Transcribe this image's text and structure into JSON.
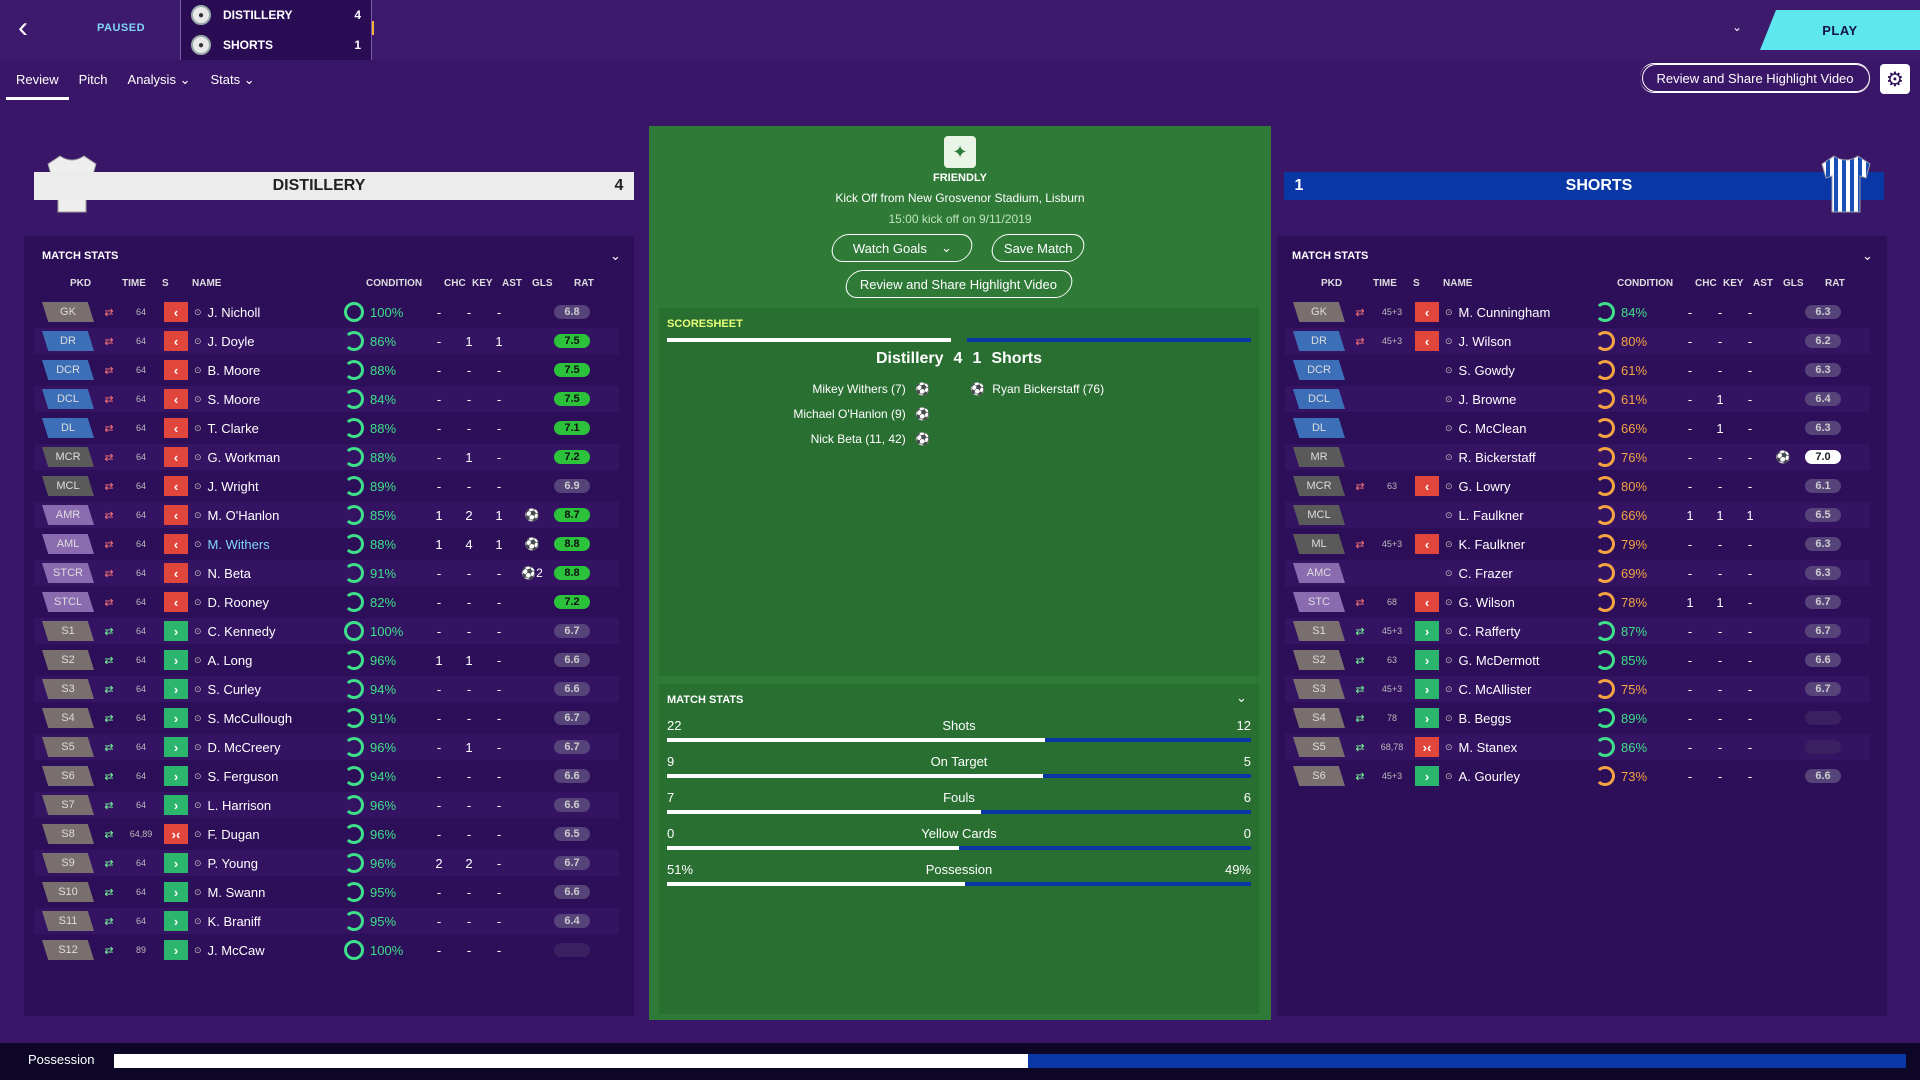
{
  "header": {
    "status": "PAUSED",
    "home": {
      "name": "DISTILLERY",
      "score": "4"
    },
    "away": {
      "name": "SHORTS",
      "score": "1"
    },
    "play_label": "PLAY",
    "highlight_label": "Review and Share Highlight Video"
  },
  "tabs": [
    {
      "label": "Review"
    },
    {
      "label": "Pitch"
    },
    {
      "label": "Analysis"
    },
    {
      "label": "Stats"
    }
  ],
  "home_team": {
    "name": "DISTILLERY",
    "score": "4"
  },
  "away_team": {
    "score": "1",
    "name": "SHORTS"
  },
  "columns": {
    "pkd": "PKD",
    "time": "TIME",
    "s": "S",
    "name": "NAME",
    "condition": "CONDITION",
    "chc": "CHC",
    "key": "KEY",
    "ast": "AST",
    "gls": "GLS",
    "rat": "RAT"
  },
  "match_stats_label": "MATCH STATS",
  "home_players": [
    {
      "pos": "GK",
      "time": "64",
      "name": "J. Nicholl",
      "cond": "100%",
      "chc": "-",
      "key": "-",
      "ast": "-",
      "gls": "",
      "rat": "6.8"
    },
    {
      "pos": "DR",
      "time": "64",
      "name": "J. Doyle",
      "cond": "86%",
      "chc": "-",
      "key": "1",
      "ast": "1",
      "gls": "",
      "rat": "7.5"
    },
    {
      "pos": "DCR",
      "time": "64",
      "name": "B. Moore",
      "cond": "88%",
      "chc": "-",
      "key": "-",
      "ast": "-",
      "gls": "",
      "rat": "7.5"
    },
    {
      "pos": "DCL",
      "time": "64",
      "name": "S. Moore",
      "cond": "84%",
      "chc": "-",
      "key": "-",
      "ast": "-",
      "gls": "",
      "rat": "7.5"
    },
    {
      "pos": "DL",
      "time": "64",
      "name": "T. Clarke",
      "cond": "88%",
      "chc": "-",
      "key": "-",
      "ast": "-",
      "gls": "",
      "rat": "7.1"
    },
    {
      "pos": "MCR",
      "time": "64",
      "name": "G. Workman",
      "cond": "88%",
      "chc": "-",
      "key": "1",
      "ast": "-",
      "gls": "",
      "rat": "7.2"
    },
    {
      "pos": "MCL",
      "time": "64",
      "name": "J. Wright",
      "cond": "89%",
      "chc": "-",
      "key": "-",
      "ast": "-",
      "gls": "",
      "rat": "6.9"
    },
    {
      "pos": "AMR",
      "time": "64",
      "name": "M. O'Hanlon",
      "cond": "85%",
      "chc": "1",
      "key": "2",
      "ast": "1",
      "gls": "⚽",
      "rat": "8.7"
    },
    {
      "pos": "AML",
      "time": "64",
      "name": "M. Withers",
      "cond": "88%",
      "chc": "1",
      "key": "4",
      "ast": "1",
      "gls": "⚽",
      "rat": "8.8"
    },
    {
      "pos": "STCR",
      "time": "64",
      "name": "N. Beta",
      "cond": "91%",
      "chc": "-",
      "key": "-",
      "ast": "-",
      "gls": "⚽2",
      "rat": "8.8"
    },
    {
      "pos": "STCL",
      "time": "64",
      "name": "D. Rooney",
      "cond": "82%",
      "chc": "-",
      "key": "-",
      "ast": "-",
      "gls": "",
      "rat": "7.2"
    },
    {
      "pos": "S1",
      "time": "64",
      "name": "C. Kennedy",
      "cond": "100%",
      "chc": "-",
      "key": "-",
      "ast": "-",
      "gls": "",
      "rat": "6.7"
    },
    {
      "pos": "S2",
      "time": "64",
      "name": "A. Long",
      "cond": "96%",
      "chc": "1",
      "key": "1",
      "ast": "-",
      "gls": "",
      "rat": "6.6"
    },
    {
      "pos": "S3",
      "time": "64",
      "name": "S. Curley",
      "cond": "94%",
      "chc": "-",
      "key": "-",
      "ast": "-",
      "gls": "",
      "rat": "6.6"
    },
    {
      "pos": "S4",
      "time": "64",
      "name": "S. McCullough",
      "cond": "91%",
      "chc": "-",
      "key": "-",
      "ast": "-",
      "gls": "",
      "rat": "6.7"
    },
    {
      "pos": "S5",
      "time": "64",
      "name": "D. McCreery",
      "cond": "96%",
      "chc": "-",
      "key": "1",
      "ast": "-",
      "gls": "",
      "rat": "6.7"
    },
    {
      "pos": "S6",
      "time": "64",
      "name": "S. Ferguson",
      "cond": "94%",
      "chc": "-",
      "key": "-",
      "ast": "-",
      "gls": "",
      "rat": "6.6"
    },
    {
      "pos": "S7",
      "time": "64",
      "name": "L. Harrison",
      "cond": "96%",
      "chc": "-",
      "key": "-",
      "ast": "-",
      "gls": "",
      "rat": "6.6"
    },
    {
      "pos": "S8",
      "time": "64,89",
      "name": "F. Dugan",
      "cond": "96%",
      "chc": "-",
      "key": "-",
      "ast": "-",
      "gls": "",
      "rat": "6.5"
    },
    {
      "pos": "S9",
      "time": "64",
      "name": "P. Young",
      "cond": "96%",
      "chc": "2",
      "key": "2",
      "ast": "-",
      "gls": "",
      "rat": "6.7"
    },
    {
      "pos": "S10",
      "time": "64",
      "name": "M. Swann",
      "cond": "95%",
      "chc": "-",
      "key": "-",
      "ast": "-",
      "gls": "",
      "rat": "6.6"
    },
    {
      "pos": "S11",
      "time": "64",
      "name": "K. Braniff",
      "cond": "95%",
      "chc": "-",
      "key": "-",
      "ast": "-",
      "gls": "",
      "rat": "6.4"
    },
    {
      "pos": "S12",
      "time": "89",
      "name": "J. McCaw",
      "cond": "100%",
      "chc": "-",
      "key": "-",
      "ast": "-",
      "gls": "",
      "rat": ""
    }
  ],
  "away_players": [
    {
      "pos": "GK",
      "time": "45+3",
      "name": "M. Cunningham",
      "cond": "84%",
      "chc": "-",
      "key": "-",
      "ast": "-",
      "gls": "",
      "rat": "6.3"
    },
    {
      "pos": "DR",
      "time": "45+3",
      "name": "J. Wilson",
      "cond": "80%",
      "chc": "-",
      "key": "-",
      "ast": "-",
      "gls": "",
      "rat": "6.2"
    },
    {
      "pos": "DCR",
      "time": "",
      "name": "S. Gowdy",
      "cond": "61%",
      "chc": "-",
      "key": "-",
      "ast": "-",
      "gls": "",
      "rat": "6.3"
    },
    {
      "pos": "DCL",
      "time": "",
      "name": "J. Browne",
      "cond": "61%",
      "chc": "-",
      "key": "1",
      "ast": "-",
      "gls": "",
      "rat": "6.4"
    },
    {
      "pos": "DL",
      "time": "",
      "name": "C. McClean",
      "cond": "66%",
      "chc": "-",
      "key": "1",
      "ast": "-",
      "gls": "",
      "rat": "6.3"
    },
    {
      "pos": "MR",
      "time": "",
      "name": "R. Bickerstaff",
      "cond": "76%",
      "chc": "-",
      "key": "-",
      "ast": "-",
      "gls": "⚽",
      "rat": "7.0"
    },
    {
      "pos": "MCR",
      "time": "63",
      "name": "G. Lowry",
      "cond": "80%",
      "chc": "-",
      "key": "-",
      "ast": "-",
      "gls": "",
      "rat": "6.1"
    },
    {
      "pos": "MCL",
      "time": "",
      "name": "L. Faulkner",
      "cond": "66%",
      "chc": "1",
      "key": "1",
      "ast": "1",
      "gls": "",
      "rat": "6.5"
    },
    {
      "pos": "ML",
      "time": "45+3",
      "name": "K. Faulkner",
      "cond": "79%",
      "chc": "-",
      "key": "-",
      "ast": "-",
      "gls": "",
      "rat": "6.3"
    },
    {
      "pos": "AMC",
      "time": "",
      "name": "C. Frazer",
      "cond": "69%",
      "chc": "-",
      "key": "-",
      "ast": "-",
      "gls": "",
      "rat": "6.3"
    },
    {
      "pos": "STC",
      "time": "68",
      "name": "G. Wilson",
      "cond": "78%",
      "chc": "1",
      "key": "1",
      "ast": "-",
      "gls": "",
      "rat": "6.7"
    },
    {
      "pos": "S1",
      "time": "45+3",
      "name": "C. Rafferty",
      "cond": "87%",
      "chc": "-",
      "key": "-",
      "ast": "-",
      "gls": "",
      "rat": "6.7"
    },
    {
      "pos": "S2",
      "time": "63",
      "name": "G. McDermott",
      "cond": "85%",
      "chc": "-",
      "key": "-",
      "ast": "-",
      "gls": "",
      "rat": "6.6"
    },
    {
      "pos": "S3",
      "time": "45+3",
      "name": "C. McAllister",
      "cond": "75%",
      "chc": "-",
      "key": "-",
      "ast": "-",
      "gls": "",
      "rat": "6.7"
    },
    {
      "pos": "S4",
      "time": "78",
      "name": "B. Beggs",
      "cond": "89%",
      "chc": "-",
      "key": "-",
      "ast": "-",
      "gls": "",
      "rat": ""
    },
    {
      "pos": "S5",
      "time": "68,78",
      "name": "M. Stanex",
      "cond": "86%",
      "chc": "-",
      "key": "-",
      "ast": "-",
      "gls": "",
      "rat": ""
    },
    {
      "pos": "S6",
      "time": "45+3",
      "name": "A. Gourley",
      "cond": "73%",
      "chc": "-",
      "key": "-",
      "ast": "-",
      "gls": "",
      "rat": "6.6"
    }
  ],
  "match_info": {
    "competition": "FRIENDLY",
    "venue": "Kick Off from New Grosvenor Stadium, Lisburn",
    "kickoff": "15:00 kick off on 9/11/2019",
    "watch_goals": "Watch Goals",
    "save_match": "Save Match",
    "highlight": "Review and Share Highlight Video"
  },
  "scoresheet": {
    "label": "SCORESHEET",
    "home": "Distillery",
    "home_score": "4",
    "away_score": "1",
    "away": "Shorts",
    "home_scorers": [
      "Mikey Withers (7)",
      "Michael O'Hanlon (9)",
      "Nick Beta (11, 42)"
    ],
    "away_scorers": [
      "Ryan Bickerstaff (76)"
    ]
  },
  "center_stats": {
    "label": "MATCH STATS",
    "rows": [
      {
        "label": "Shots",
        "home": "22",
        "away": "12",
        "home_frac": 0.647
      },
      {
        "label": "On Target",
        "home": "9",
        "away": "5",
        "home_frac": 0.643
      },
      {
        "label": "Fouls",
        "home": "7",
        "away": "6",
        "home_frac": 0.538
      },
      {
        "label": "Yellow Cards",
        "home": "0",
        "away": "0",
        "home_frac": 0.5
      },
      {
        "label": "Possession",
        "home": "51%",
        "away": "49%",
        "home_frac": 0.51
      }
    ]
  },
  "possession_bar": {
    "label": "Possession",
    "home_frac": 0.51
  }
}
